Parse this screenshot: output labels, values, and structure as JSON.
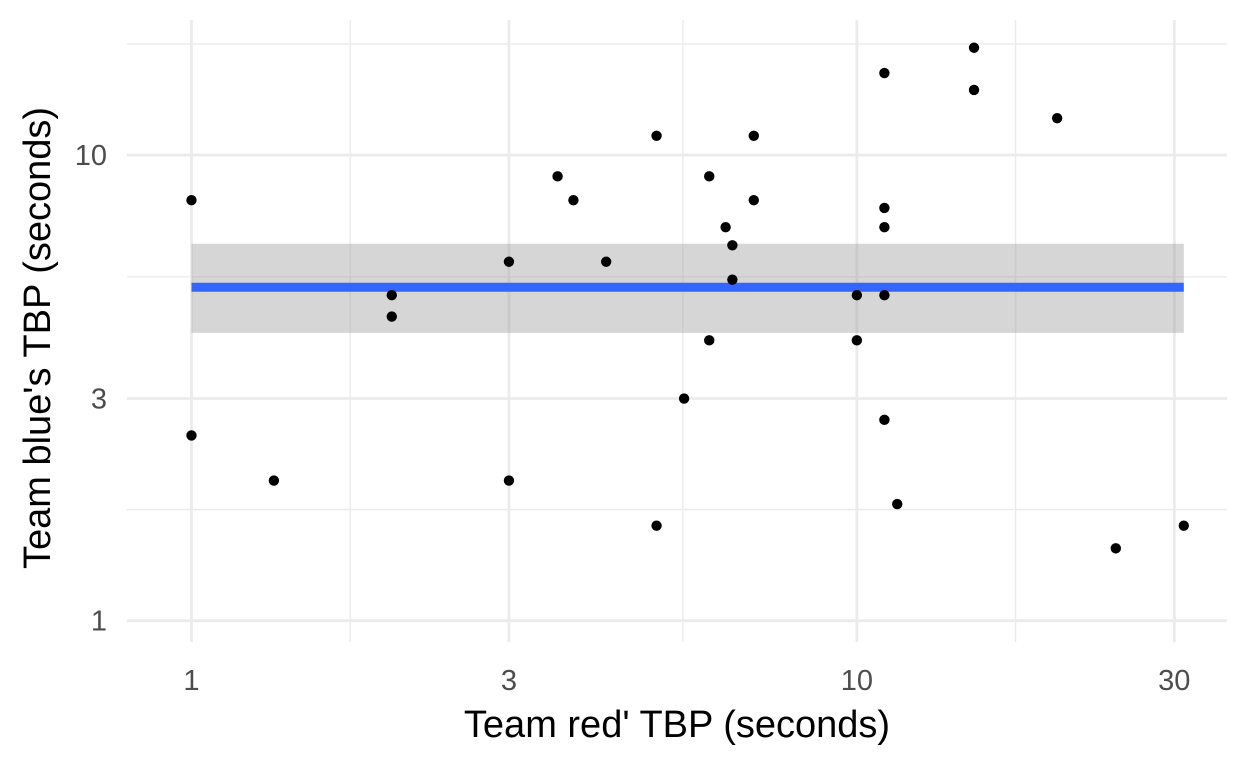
{
  "chart_data": {
    "type": "scatter",
    "title": "",
    "xlabel": "Team red' TBP (seconds)",
    "ylabel": "Team blue's TBP (seconds)",
    "x_scale": "log10",
    "y_scale": "log10",
    "xlim": [
      0.8,
      36
    ],
    "ylim": [
      0.9,
      19.5
    ],
    "x_ticks": [
      1,
      3,
      10,
      30
    ],
    "x_tick_labels": [
      "1",
      "3",
      "10",
      "30"
    ],
    "y_ticks": [
      1,
      3,
      10
    ],
    "y_tick_labels": [
      "1",
      "3",
      "10"
    ],
    "x_minor_ticks": [
      1.732,
      5.477,
      17.32
    ],
    "y_minor_ticks": [
      1.732,
      5.477,
      17.32
    ],
    "grid": true,
    "legend": "none",
    "points": [
      {
        "x": 1.0,
        "y": 8.0
      },
      {
        "x": 1.0,
        "y": 2.5
      },
      {
        "x": 1.33,
        "y": 2.0
      },
      {
        "x": 2.0,
        "y": 5.0
      },
      {
        "x": 2.0,
        "y": 4.5
      },
      {
        "x": 3.0,
        "y": 5.9
      },
      {
        "x": 3.0,
        "y": 2.0
      },
      {
        "x": 3.55,
        "y": 9.0
      },
      {
        "x": 3.75,
        "y": 8.0
      },
      {
        "x": 4.2,
        "y": 5.9
      },
      {
        "x": 5.0,
        "y": 11.0
      },
      {
        "x": 5.0,
        "y": 1.6
      },
      {
        "x": 5.5,
        "y": 3.0
      },
      {
        "x": 6.0,
        "y": 9.0
      },
      {
        "x": 6.0,
        "y": 4.0
      },
      {
        "x": 6.35,
        "y": 7.0
      },
      {
        "x": 6.5,
        "y": 6.4
      },
      {
        "x": 6.5,
        "y": 5.4
      },
      {
        "x": 7.0,
        "y": 11.0
      },
      {
        "x": 7.0,
        "y": 8.0
      },
      {
        "x": 10.0,
        "y": 5.0
      },
      {
        "x": 10.0,
        "y": 4.0
      },
      {
        "x": 11.0,
        "y": 15.0
      },
      {
        "x": 11.0,
        "y": 7.7
      },
      {
        "x": 11.0,
        "y": 7.0
      },
      {
        "x": 11.0,
        "y": 5.0
      },
      {
        "x": 11.0,
        "y": 2.7
      },
      {
        "x": 11.5,
        "y": 1.78
      },
      {
        "x": 15.0,
        "y": 17.0
      },
      {
        "x": 15.0,
        "y": 13.8
      },
      {
        "x": 20.0,
        "y": 12.0
      },
      {
        "x": 24.5,
        "y": 1.43
      },
      {
        "x": 31.0,
        "y": 1.6
      }
    ],
    "point_color": "#000000",
    "smooth": {
      "method": "lm",
      "x_range": [
        1.0,
        31.0
      ],
      "y": 5.2,
      "ci_lower": 4.15,
      "ci_upper": 6.45,
      "line_color": "#3366FF",
      "band_color": "#999999"
    }
  }
}
